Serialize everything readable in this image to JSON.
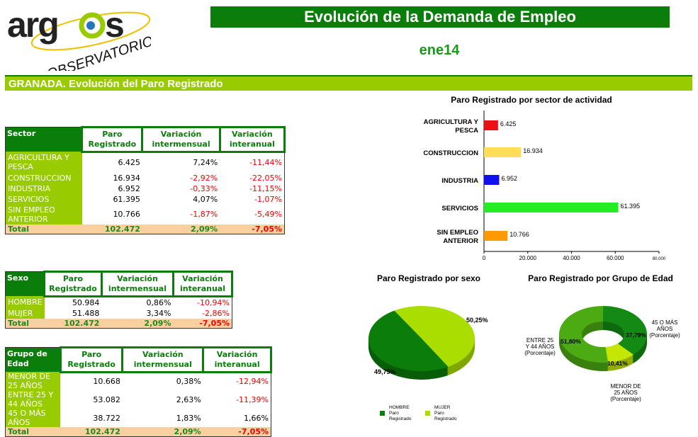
{
  "logo": {
    "text": "argos",
    "subtext": "OBSERVATORIO"
  },
  "header": {
    "title": "Evolución de la Demanda de Empleo",
    "period": "ene14"
  },
  "section_title": "GRANADA. Evolución del Paro Registrado",
  "colors": {
    "dark_green": "#0a7d0a",
    "light_green": "#99cc00",
    "total_bg": "#fbd0a0",
    "negative": "#e00000"
  },
  "sector_table": {
    "headers": [
      "Sector",
      "Paro Registrado",
      "Variación intermensual",
      "Variación interanual"
    ],
    "rows": [
      [
        "AGRICULTURA Y PESCA",
        "6.425",
        "7,24%",
        "-11,44%"
      ],
      [
        "CONSTRUCCION",
        "16.934",
        "-2,92%",
        "-22,05%"
      ],
      [
        "INDUSTRIA",
        "6.952",
        "-0,33%",
        "-11,15%"
      ],
      [
        "SERVICIOS",
        "61.395",
        "4,07%",
        "-1,07%"
      ],
      [
        "SIN EMPLEO ANTERIOR",
        "10.766",
        "-1,87%",
        "-5,49%"
      ]
    ],
    "total": [
      "Total",
      "102.472",
      "2,09%",
      "-7,05%"
    ]
  },
  "sexo_table": {
    "headers": [
      "Sexo",
      "Paro Registrado",
      "Variación intermensual",
      "Variación interanual"
    ],
    "rows": [
      [
        "HOMBRE",
        "50.984",
        "0,86%",
        "-10,94%"
      ],
      [
        "MUJER",
        "51.488",
        "3,34%",
        "-2,86%"
      ]
    ],
    "total": [
      "Total",
      "102.472",
      "2,09%",
      "-7,05%"
    ]
  },
  "edad_table": {
    "headers": [
      "Grupo de Edad",
      "Paro Registrado",
      "Variación intermensual",
      "Variación interanual"
    ],
    "rows": [
      [
        "MENOR DE 25 AÑOS",
        "10.668",
        "0,38%",
        "-12,94%"
      ],
      [
        "ENTRE 25 Y 44 AÑOS",
        "53.082",
        "2,63%",
        "-11,39%"
      ],
      [
        "45 O MÁS AÑOS",
        "38.722",
        "1,83%",
        "1,66%"
      ]
    ],
    "total": [
      "Total",
      "102.472",
      "2,09%",
      "-7,05%"
    ]
  },
  "chart_data": [
    {
      "type": "bar",
      "orientation": "horizontal",
      "title": "Paro Registrado por sector de actividad",
      "categories": [
        "AGRICULTURA Y PESCA",
        "CONSTRUCCION",
        "INDUSTRIA",
        "SERVICIOS",
        "SIN EMPLEO ANTERIOR"
      ],
      "values": [
        6425,
        16934,
        6952,
        61395,
        10766
      ],
      "data_labels": [
        "6.425",
        "16.934",
        "6.952",
        "61.395",
        "10.766"
      ],
      "colors": [
        "#ee1111",
        "#ffdd55",
        "#1111ee",
        "#22ee22",
        "#ff9900"
      ],
      "xlim": [
        0,
        80000
      ],
      "xticks": [
        "0",
        "20.000",
        "40.000",
        "60.000",
        "80.000"
      ]
    },
    {
      "type": "pie",
      "title": "Paro Registrado por sexo",
      "categories": [
        "HOMBRE Paro Registrado",
        "MUJER Paro Registrado"
      ],
      "values": [
        49.75,
        50.25
      ],
      "data_labels": [
        "49,75%",
        "50,25%"
      ],
      "colors": [
        "#0a7d0a",
        "#aadd00"
      ],
      "legend": "bottom"
    },
    {
      "type": "pie",
      "donut": true,
      "title": "Paro Registrado por Grupo de Edad",
      "categories": [
        "45 O MÁS AÑOS (Porcentaje)",
        "MENOR DE 25 AÑOS (Porcentaje)",
        "ENTRE 25 Y 44 AÑOS (Porcentaje)"
      ],
      "values": [
        37.79,
        10.41,
        51.8
      ],
      "data_labels": [
        "37,79%",
        "10,41%",
        "51,80%"
      ],
      "colors": [
        "#138a13",
        "#c4e600",
        "#4caa12"
      ]
    }
  ]
}
